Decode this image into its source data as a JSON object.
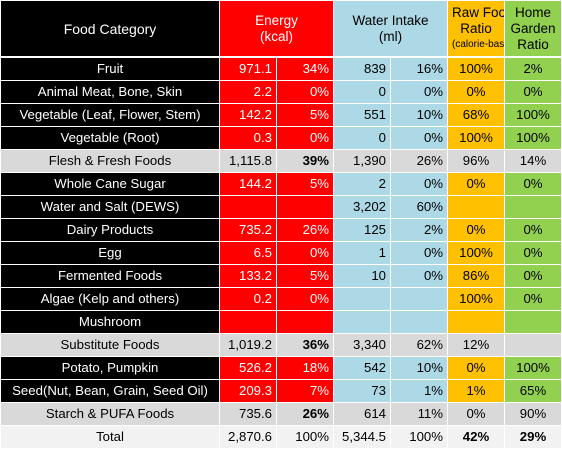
{
  "headers": {
    "category": "Food Category",
    "energy": [
      "Energy",
      "(kcal)"
    ],
    "water": [
      "Water Intake",
      "(ml)"
    ],
    "raw": [
      "Raw Food",
      "Ratio",
      "(calorie-based)"
    ],
    "home": [
      "Home",
      "Garden",
      "Ratio"
    ]
  },
  "rows": [
    {
      "type": "item",
      "category": "Fruit",
      "energy": "971.1",
      "energy_pct": "34%",
      "water": "839",
      "water_pct": "16%",
      "raw": "100%",
      "home": "2%"
    },
    {
      "type": "item",
      "category": "Animal Meat, Bone, Skin",
      "energy": "2.2",
      "energy_pct": "0%",
      "water": "0",
      "water_pct": "0%",
      "raw": "0%",
      "home": "0%"
    },
    {
      "type": "item",
      "category": "Vegetable (Leaf, Flower, Stem)",
      "energy": "142.2",
      "energy_pct": "5%",
      "water": "551",
      "water_pct": "10%",
      "raw": "68%",
      "home": "100%"
    },
    {
      "type": "item",
      "category": "Vegetable (Root)",
      "energy": "0.3",
      "energy_pct": "0%",
      "water": "0",
      "water_pct": "0%",
      "raw": "100%",
      "home": "100%"
    },
    {
      "type": "sub",
      "category": "Flesh & Fresh Foods",
      "energy": "1,115.8",
      "energy_pct": "39%",
      "water": "1,390",
      "water_pct": "26%",
      "raw": "96%",
      "home": "14%"
    },
    {
      "type": "item",
      "category": "Whole Cane Sugar",
      "energy": "144.2",
      "energy_pct": "5%",
      "water": "2",
      "water_pct": "0%",
      "raw": "0%",
      "home": "0%"
    },
    {
      "type": "item",
      "category": "Water and Salt (DEWS)",
      "energy": "",
      "energy_pct": "",
      "water": "3,202",
      "water_pct": "60%",
      "raw": "",
      "home": ""
    },
    {
      "type": "item",
      "category": "Dairy Products",
      "energy": "735.2",
      "energy_pct": "26%",
      "water": "125",
      "water_pct": "2%",
      "raw": "0%",
      "home": "0%"
    },
    {
      "type": "item",
      "category": "Egg",
      "energy": "6.5",
      "energy_pct": "0%",
      "water": "1",
      "water_pct": "0%",
      "raw": "100%",
      "home": "0%"
    },
    {
      "type": "item",
      "category": "Fermented Foods",
      "energy": "133.2",
      "energy_pct": "5%",
      "water": "10",
      "water_pct": "0%",
      "raw": "86%",
      "home": "0%"
    },
    {
      "type": "item",
      "category": "Algae (Kelp and others)",
      "energy": "0.2",
      "energy_pct": "0%",
      "water": "",
      "water_pct": "",
      "raw": "100%",
      "home": "0%"
    },
    {
      "type": "item",
      "category": "Mushroom",
      "energy": "",
      "energy_pct": "",
      "water": "",
      "water_pct": "",
      "raw": "",
      "home": ""
    },
    {
      "type": "sub",
      "category": "Substitute Foods",
      "energy": "1,019.2",
      "energy_pct": "36%",
      "water": "3,340",
      "water_pct": "62%",
      "raw": "12%",
      "home": ""
    },
    {
      "type": "item",
      "category": "Potato, Pumpkin",
      "energy": "526.2",
      "energy_pct": "18%",
      "water": "542",
      "water_pct": "10%",
      "raw": "0%",
      "home": "100%"
    },
    {
      "type": "item",
      "category": "Seed(Nut, Bean, Grain, Seed Oil)",
      "energy": "209.3",
      "energy_pct": "7%",
      "water": "73",
      "water_pct": "1%",
      "raw": "1%",
      "home": "65%"
    },
    {
      "type": "sub",
      "category": "Starch & PUFA Foods",
      "energy": "735.6",
      "energy_pct": "26%",
      "water": "614",
      "water_pct": "11%",
      "raw": "0%",
      "home": "90%"
    },
    {
      "type": "total",
      "category": "Total",
      "energy": "2,870.6",
      "energy_pct": "100%",
      "water": "5,344.5",
      "water_pct": "100%",
      "raw": "42%",
      "home": "29%"
    }
  ]
}
